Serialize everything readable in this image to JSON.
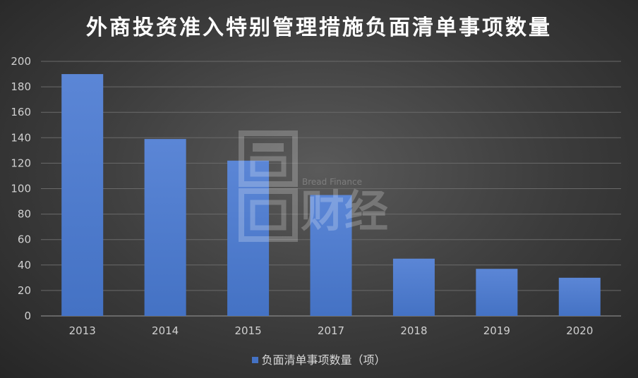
{
  "title": "外商投资准入特别管理措施负面清单事项数量",
  "legend": {
    "label": "负面清单事项数量（项）"
  },
  "watermark": {
    "sub": "Bread Finance",
    "name": "财经"
  },
  "colors": {
    "bar": "#4472c4",
    "bar_light": "#5b86d6",
    "grid": "#6a6a6a"
  },
  "chart_data": {
    "type": "bar",
    "title": "外商投资准入特别管理措施负面清单事项数量",
    "categories": [
      "2013",
      "2014",
      "2015",
      "2017",
      "2018",
      "2019",
      "2020"
    ],
    "series": [
      {
        "name": "负面清单事项数量（项）",
        "values": [
          190,
          139,
          122,
          95,
          45,
          37,
          30
        ]
      }
    ],
    "yticks": [
      0,
      20,
      40,
      60,
      80,
      100,
      120,
      140,
      160,
      180,
      200
    ],
    "ylim": [
      0,
      200
    ],
    "grid": true,
    "legend_position": "bottom"
  }
}
